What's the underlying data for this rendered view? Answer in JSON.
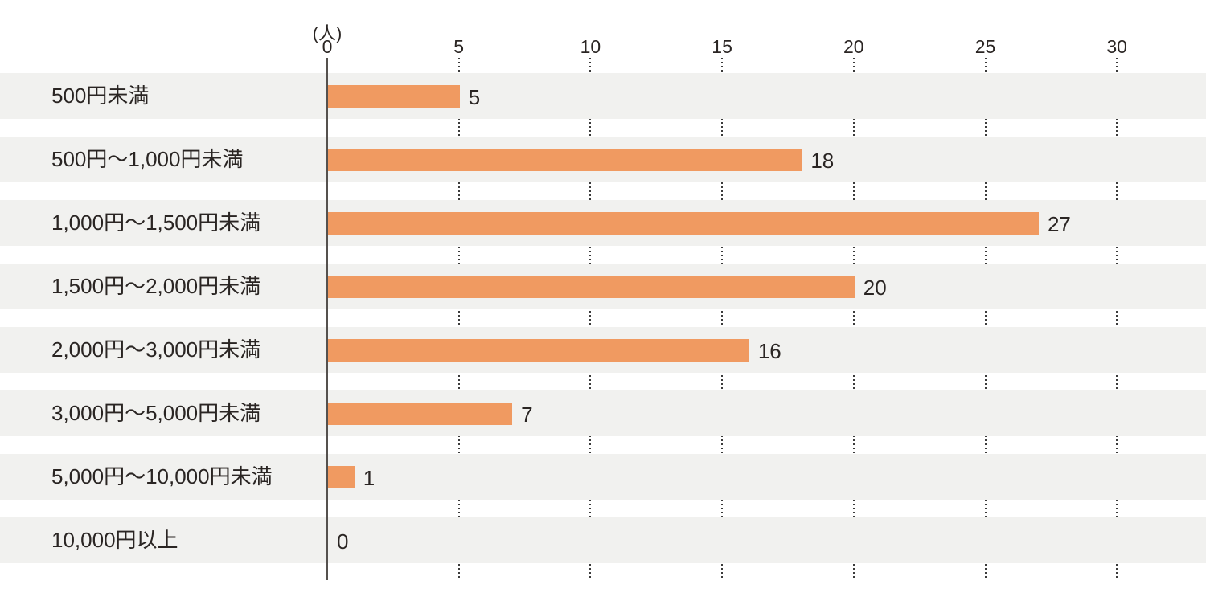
{
  "chart_data": {
    "type": "bar",
    "orientation": "horizontal",
    "title": "",
    "unit_label": "(人)",
    "xlabel": "(人)",
    "ylabel": "",
    "xlim": [
      0,
      30
    ],
    "x_ticks": [
      0,
      5,
      10,
      15,
      20,
      25,
      30
    ],
    "categories": [
      "500円未満",
      "500円〜1,000円未満",
      "1,000円〜1,500円未満",
      "1,500円〜2,000円未満",
      "2,000円〜3,000円未満",
      "3,000円〜5,000円未満",
      "5,000円〜10,000円未満",
      "10,000円以上"
    ],
    "values": [
      5,
      18,
      27,
      20,
      16,
      7,
      1,
      0
    ],
    "data_labels": [
      "5",
      "18",
      "27",
      "20",
      "16",
      "7",
      "1",
      "0"
    ],
    "grid": "dotted-vertical-at-ticks",
    "legend": "none",
    "colors": {
      "bar": "#f09a61",
      "row_band": "#f1f1ef",
      "axis_line": "#55514e",
      "grid_dot": "#3b3b3b",
      "text": "#2a2523",
      "background": "#ffffff"
    }
  }
}
